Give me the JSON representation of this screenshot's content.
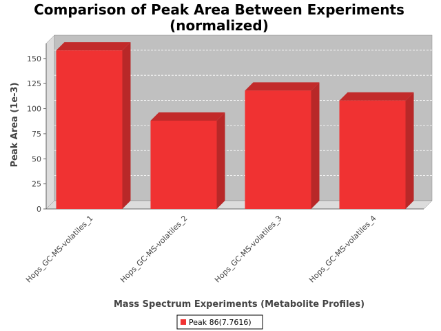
{
  "chart_data": {
    "type": "bar",
    "title_line1": "Comparison of Peak Area Between Experiments",
    "title_line2": "(normalized)",
    "xlabel": "Mass Spectrum Experiments (Metabolite Profiles)",
    "ylabel": "Peak Area (1e-3)",
    "categories": [
      "Hops_GC-MS-volatiles_1",
      "Hops_GC-MS-volatiles_2",
      "Hops_GC-MS-volatiles_3",
      "Hops_GC-MS-volatiles_4"
    ],
    "series": [
      {
        "name": "Peak 86(7.7616)",
        "values": [
          158,
          88,
          118,
          108
        ],
        "color": "#f03232"
      }
    ],
    "ylim": [
      0,
      165
    ],
    "yticks": [
      0,
      25,
      50,
      75,
      100,
      125,
      150
    ],
    "grid": true,
    "legend_position": "bottom",
    "style": "3d",
    "plot_background": "#c0c0c0"
  }
}
